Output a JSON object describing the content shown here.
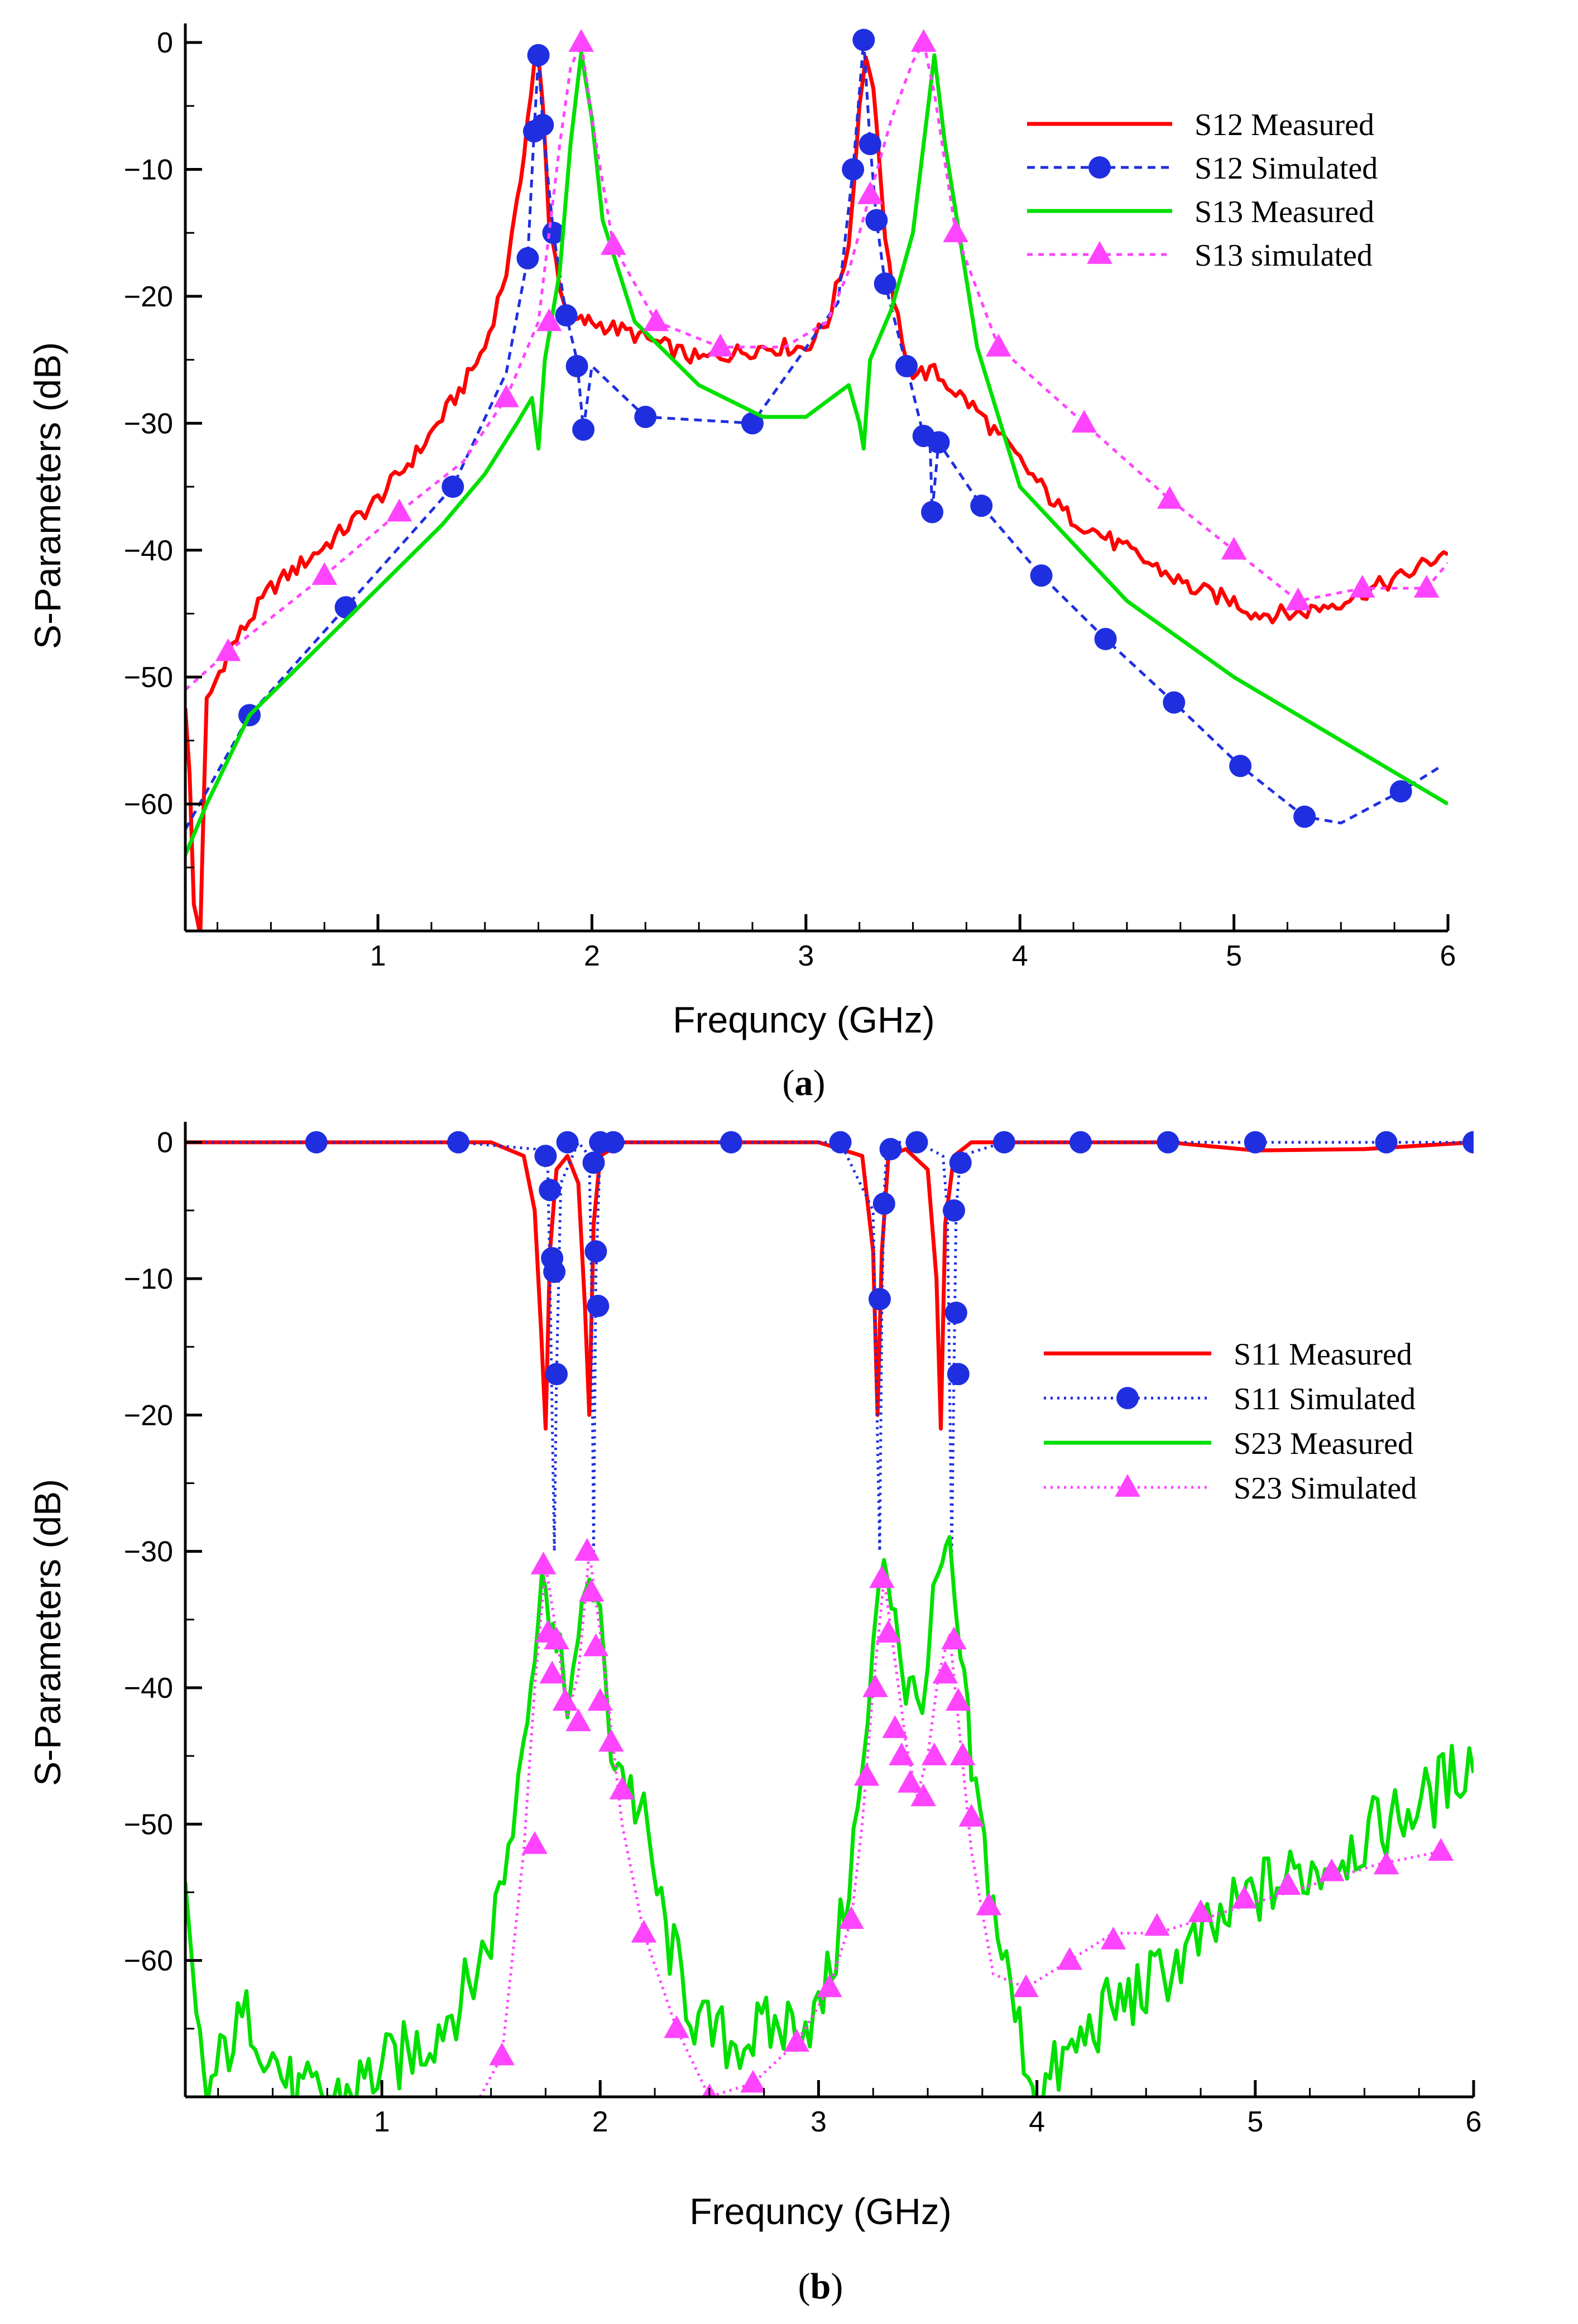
{
  "chart_data": [
    {
      "type": "line",
      "caption_prefix": "(",
      "caption_letter": "a",
      "caption_suffix": ")",
      "xlabel": "Frequncy (GHz)",
      "ylabel": "S-Parameters (dB)",
      "xlim": [
        0.1,
        6.0
      ],
      "ylim": [
        -70,
        1.5
      ],
      "xticks": [
        1,
        2,
        3,
        4,
        5,
        6
      ],
      "yticks": [
        0,
        -10,
        -20,
        -30,
        -40,
        -50,
        -60
      ],
      "legend_position": "top-right",
      "series": [
        {
          "name": "S12 Measured",
          "color": "#ff0000",
          "dash": "",
          "marker": "none",
          "jitter": 0.7,
          "x": [
            0.1,
            0.12,
            0.14,
            0.17,
            0.2,
            0.3,
            0.5,
            0.8,
            1.0,
            1.2,
            1.4,
            1.5,
            1.6,
            1.65,
            1.7,
            1.73,
            1.75,
            1.77,
            1.8,
            1.85,
            1.9,
            1.95,
            2.0,
            2.2,
            2.5,
            2.8,
            3.0,
            3.1,
            3.2,
            3.25,
            3.28,
            3.3,
            3.33,
            3.37,
            3.45,
            3.5,
            3.6,
            3.8,
            4.0,
            4.2,
            4.5,
            4.8,
            5.0,
            5.1,
            5.2,
            5.3,
            5.5,
            5.8,
            6.0
          ],
          "y": [
            -52,
            -58,
            -68,
            -70,
            -52,
            -48,
            -43,
            -39,
            -36,
            -32,
            -27,
            -24,
            -18,
            -13,
            -6,
            -2,
            -1.5,
            -5,
            -14,
            -19,
            -22,
            -22,
            -22,
            -23,
            -25,
            -24,
            -24,
            -22,
            -16,
            -5,
            -1,
            -2,
            -6,
            -16,
            -24,
            -26,
            -26,
            -29,
            -33,
            -37,
            -40,
            -43,
            -44,
            -45,
            -45,
            -45,
            -44,
            -42,
            -40
          ]
        },
        {
          "name": "S12 Simulated",
          "color": "#1f2fe0",
          "dash": "14,10",
          "marker": "circle",
          "jitter": 0,
          "x": [
            0.1,
            0.4,
            0.85,
            1.35,
            1.6,
            1.7,
            1.73,
            1.75,
            1.77,
            1.82,
            1.88,
            1.93,
            1.96,
            2.0,
            2.25,
            2.75,
            3.15,
            3.22,
            3.27,
            3.3,
            3.33,
            3.37,
            3.47,
            3.55,
            3.58,
            3.59,
            3.62,
            3.82,
            4.1,
            4.4,
            4.72,
            5.03,
            5.33,
            5.5,
            5.78,
            5.97
          ],
          "y": [
            -62,
            -53,
            -44.5,
            -35,
            -26,
            -17,
            -7,
            -1,
            -6.5,
            -15,
            -21.5,
            -25,
            -30.5,
            -25.5,
            -29.5,
            -30,
            -20.5,
            -10,
            0.2,
            -8,
            -14,
            -19,
            -25.5,
            -31,
            -31.5,
            -37,
            -31.5,
            -36.5,
            -42,
            -47,
            -52,
            -57,
            -61,
            -61.5,
            -59,
            -57
          ],
          "markers_x": [
            0.4,
            0.85,
            1.35,
            1.7,
            1.73,
            1.75,
            1.77,
            1.82,
            1.88,
            1.93,
            1.96,
            2.25,
            2.75,
            3.22,
            3.27,
            3.3,
            3.33,
            3.37,
            3.47,
            3.55,
            3.59,
            3.62,
            3.82,
            4.1,
            4.4,
            4.72,
            5.03,
            5.33,
            5.78
          ],
          "markers_y": [
            -53,
            -44.5,
            -35,
            -17,
            -7,
            -1,
            -6.5,
            -15,
            -21.5,
            -25.5,
            -30.5,
            -29.5,
            -30,
            -10,
            0.2,
            -8,
            -14,
            -19,
            -25.5,
            -31,
            -37,
            -31.5,
            -36.5,
            -42,
            -47,
            -52,
            -57,
            -61,
            -59
          ]
        },
        {
          "name": "S13 Measured",
          "color": "#00e000",
          "dash": "",
          "marker": "none",
          "jitter": 0,
          "x": [
            0.1,
            0.2,
            0.4,
            0.7,
            1.0,
            1.3,
            1.5,
            1.65,
            1.72,
            1.75,
            1.78,
            1.85,
            1.9,
            1.95,
            2.0,
            2.05,
            2.2,
            2.5,
            2.8,
            3.0,
            3.2,
            3.25,
            3.27,
            3.3,
            3.4,
            3.5,
            3.55,
            3.6,
            3.65,
            3.8,
            4.0,
            4.5,
            5.0,
            5.5,
            6.0
          ],
          "y": [
            -64,
            -60,
            -53,
            -48,
            -43,
            -38,
            -34,
            -30,
            -28,
            -32,
            -25,
            -18,
            -8,
            -0.8,
            -6,
            -14,
            -22,
            -27,
            -29.5,
            -29.5,
            -27,
            -30,
            -32,
            -25,
            -21,
            -15,
            -8,
            -1,
            -8,
            -24,
            -35,
            -44,
            -50,
            -55,
            -60
          ]
        },
        {
          "name": "S13 simulated",
          "color": "#ff44ff",
          "dash": "10,10",
          "marker": "triangle",
          "jitter": 0,
          "x": [
            0.1,
            0.3,
            0.75,
            1.1,
            1.4,
            1.6,
            1.75,
            1.8,
            1.85,
            1.9,
            1.95,
            2.0,
            2.1,
            2.3,
            2.6,
            2.9,
            3.1,
            3.2,
            3.3,
            3.4,
            3.5,
            3.55,
            3.6,
            3.7,
            3.9,
            4.3,
            4.7,
            5.0,
            5.3,
            5.6,
            5.9,
            6.0
          ],
          "y": [
            -51,
            -48,
            -42,
            -37,
            -33,
            -28,
            -22,
            -15,
            -8,
            -2,
            0,
            -6,
            -16,
            -22,
            -24,
            -24,
            -22,
            -18,
            -12,
            -6,
            -1.5,
            0,
            -4,
            -15,
            -24,
            -30,
            -36,
            -40,
            -44,
            -43,
            -43,
            -41
          ],
          "markers_x": [
            0.3,
            0.75,
            1.1,
            1.6,
            1.8,
            1.95,
            2.1,
            2.3,
            2.6,
            3.3,
            3.55,
            3.7,
            3.9,
            4.3,
            4.7,
            5.0,
            5.3,
            5.6,
            5.9
          ],
          "markers_y": [
            -48,
            -42,
            -37,
            -28,
            -22,
            0,
            -16,
            -22,
            -24,
            -12,
            0,
            -15,
            -24,
            -30,
            -36,
            -40,
            -44,
            -43,
            -43
          ]
        }
      ]
    },
    {
      "type": "line",
      "caption_prefix": "(",
      "caption_letter": "b",
      "caption_suffix": ")",
      "xlabel": "Frequncy (GHz)",
      "ylabel": "S-Parameters (dB)",
      "xlim": [
        0.1,
        6.0
      ],
      "ylim": [
        -70,
        1.5
      ],
      "xticks": [
        1,
        2,
        3,
        4,
        5,
        6
      ],
      "yticks": [
        0,
        -10,
        -20,
        -30,
        -40,
        -50,
        -60
      ],
      "legend_position": "center-right",
      "series": [
        {
          "name": "S11  Measured",
          "color": "#ff0000",
          "dash": "",
          "marker": "none",
          "jitter": 0,
          "x": [
            0.1,
            1.5,
            1.65,
            1.7,
            1.73,
            1.75,
            1.77,
            1.8,
            1.85,
            1.9,
            1.93,
            1.95,
            1.97,
            2.0,
            2.1,
            3.0,
            3.2,
            3.25,
            3.27,
            3.29,
            3.32,
            3.4,
            3.5,
            3.54,
            3.56,
            3.58,
            3.62,
            3.7,
            4.0,
            4.6,
            5.0,
            5.5,
            6.0
          ],
          "y": [
            0,
            0,
            -1,
            -5,
            -14,
            -21,
            -8,
            -2,
            -1,
            -3,
            -12,
            -20,
            -6,
            -1,
            0,
            0,
            -1,
            -8,
            -20,
            -8,
            -1,
            -0.5,
            -2,
            -10,
            -21,
            -6,
            -1,
            0,
            0,
            0,
            -0.6,
            -0.5,
            0
          ]
        },
        {
          "name": "S11 Simulated",
          "color": "#1f2fe0",
          "dash": "4,8",
          "marker": "circle",
          "jitter": 0,
          "x": [
            0.1,
            0.7,
            1.35,
            1.7,
            1.76,
            1.77,
            1.78,
            1.79,
            1.8,
            1.82,
            1.9,
            1.95,
            1.96,
            1.97,
            1.98,
            2.0,
            2.05,
            2.6,
            3.1,
            3.25,
            3.28,
            3.29,
            3.3,
            3.31,
            3.33,
            3.45,
            3.57,
            3.59,
            3.61,
            3.62,
            3.63,
            3.65,
            3.85,
            4.2,
            4.6,
            5.0,
            5.6,
            6.0
          ],
          "y": [
            0,
            0,
            0,
            -0.5,
            -2,
            -10,
            -20,
            -30,
            -17,
            -3,
            0,
            -1,
            -10,
            -30,
            -10,
            -0.5,
            0,
            0,
            0,
            -5,
            -30,
            -12,
            -4,
            -1,
            0,
            0,
            -1,
            -5,
            -30,
            -17,
            -5,
            -1,
            0,
            0,
            0,
            0,
            0,
            0
          ],
          "markers_x": [
            0.7,
            1.35,
            1.75,
            1.77,
            1.78,
            1.79,
            1.8,
            1.85,
            1.97,
            1.98,
            1.99,
            2.0,
            2.06,
            2.6,
            3.1,
            3.28,
            3.3,
            3.33,
            3.45,
            3.62,
            3.63,
            3.64,
            3.65,
            3.85,
            4.2,
            4.6,
            5.0,
            5.6,
            6.0
          ],
          "markers_y": [
            0,
            0,
            -1,
            -3.5,
            -8.5,
            -9.5,
            -17,
            0,
            -1.5,
            -8,
            -12,
            0,
            0,
            0,
            0,
            -11.5,
            -4.5,
            -0.5,
            0,
            -5,
            -12.5,
            -17,
            -1.5,
            0,
            0,
            0,
            0,
            0,
            0
          ]
        },
        {
          "name": "S23 Measured",
          "color": "#00e000",
          "dash": "",
          "marker": "none",
          "jitter": 2.6,
          "x": [
            0.1,
            0.15,
            0.2,
            0.3,
            0.4,
            0.6,
            0.8,
            1.0,
            1.2,
            1.4,
            1.5,
            1.6,
            1.65,
            1.7,
            1.75,
            1.8,
            1.85,
            1.9,
            1.95,
            2.0,
            2.05,
            2.1,
            2.2,
            2.3,
            2.45,
            2.6,
            2.8,
            3.0,
            3.1,
            3.2,
            3.25,
            3.3,
            3.35,
            3.4,
            3.45,
            3.5,
            3.55,
            3.6,
            3.65,
            3.7,
            3.8,
            3.9,
            4.0,
            4.1,
            4.3,
            4.5,
            4.8,
            5.0,
            5.3,
            5.6,
            5.8,
            6.0
          ],
          "y": [
            -56,
            -65,
            -70,
            -66,
            -64,
            -70,
            -70,
            -68,
            -66,
            -62,
            -58,
            -50,
            -42,
            -37,
            -31,
            -38,
            -40,
            -38,
            -31,
            -36,
            -44,
            -46,
            -50,
            -58,
            -65,
            -66,
            -65,
            -64,
            -58,
            -47,
            -38,
            -30,
            -34,
            -40,
            -41,
            -38,
            -32,
            -31,
            -38,
            -46,
            -56,
            -64,
            -70,
            -68,
            -64,
            -62,
            -58,
            -55,
            -53,
            -50,
            -48,
            -45
          ]
        },
        {
          "name": "S23 Simulated",
          "color": "#ff44ff",
          "dash": "4,8",
          "marker": "triangle",
          "jitter": 0,
          "x": [
            1.45,
            1.55,
            1.65,
            1.7,
            1.75,
            1.8,
            1.85,
            1.9,
            1.95,
            2.0,
            2.05,
            2.1,
            2.2,
            2.35,
            2.5,
            2.7,
            2.9,
            3.05,
            3.15,
            3.2,
            3.25,
            3.3,
            3.35,
            3.4,
            3.45,
            3.5,
            3.55,
            3.6,
            3.65,
            3.7,
            3.8,
            3.95,
            4.15,
            4.35,
            4.55,
            4.75,
            4.95,
            5.15,
            5.35,
            5.55,
            5.85
          ],
          "y": [
            -70,
            -67,
            -52,
            -40,
            -31,
            -36,
            -42,
            -39,
            -30,
            -36,
            -43,
            -50,
            -58,
            -65,
            -70,
            -69,
            -66,
            -62,
            -57,
            -50,
            -40,
            -32,
            -38,
            -44,
            -48,
            -45,
            -39,
            -36,
            -44,
            -52,
            -61,
            -62,
            -60,
            -58,
            -58,
            -57,
            -56,
            -55,
            -54,
            -53,
            -52
          ],
          "markers_x": [
            1.55,
            1.7,
            1.74,
            1.76,
            1.78,
            1.8,
            1.84,
            1.9,
            1.94,
            1.96,
            1.98,
            2.0,
            2.05,
            2.1,
            2.2,
            2.35,
            2.5,
            2.7,
            2.9,
            3.05,
            3.15,
            3.22,
            3.26,
            3.29,
            3.32,
            3.35,
            3.38,
            3.42,
            3.48,
            3.53,
            3.58,
            3.62,
            3.64,
            3.66,
            3.7,
            3.78,
            3.95,
            4.15,
            4.35,
            4.55,
            4.75,
            4.95,
            5.15,
            5.35,
            5.6,
            5.85
          ],
          "markers_y": [
            -67,
            -51.5,
            -31,
            -36,
            -39,
            -36.5,
            -41,
            -42.5,
            -30,
            -33,
            -37,
            -41,
            -44,
            -47.5,
            -58,
            -65,
            -70,
            -69,
            -66,
            -62,
            -57,
            -46.5,
            -40,
            -32,
            -36,
            -43,
            -45,
            -47,
            -48,
            -45,
            -39,
            -36.5,
            -41,
            -45,
            -49.5,
            -56,
            -62,
            -60,
            -58.5,
            -57.5,
            -56.5,
            -55.5,
            -54.5,
            -53.5,
            -53,
            -52
          ]
        }
      ]
    }
  ]
}
